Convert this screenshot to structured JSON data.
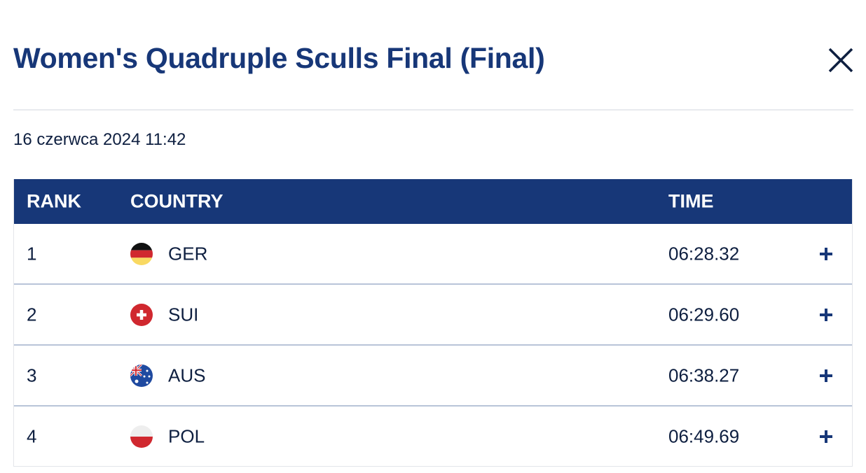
{
  "title": "Women's Quadruple Sculls Final (Final)",
  "date": "16 czerwca 2024 11:42",
  "columns": {
    "rank": "RANK",
    "country": "COUNTRY",
    "time": "TIME"
  },
  "rows": [
    {
      "rank": "1",
      "country": "GER",
      "time": "06:28.32",
      "flag": "germany-flag"
    },
    {
      "rank": "2",
      "country": "SUI",
      "time": "06:29.60",
      "flag": "switzerland-flag"
    },
    {
      "rank": "3",
      "country": "AUS",
      "time": "06:38.27",
      "flag": "australia-flag"
    },
    {
      "rank": "4",
      "country": "POL",
      "time": "06:49.69",
      "flag": "poland-flag"
    }
  ],
  "colors": {
    "brand": "#173778"
  }
}
